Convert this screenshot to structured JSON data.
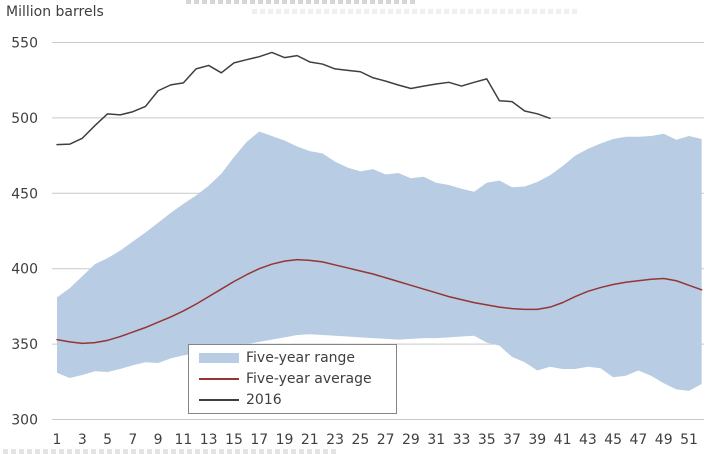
{
  "chart_data": {
    "type": "area",
    "title": "",
    "ylabel": "Million barrels",
    "xlabel": "",
    "x_unit": "week of year",
    "x_tick_labels": [
      "1",
      "3",
      "5",
      "7",
      "9",
      "11",
      "13",
      "15",
      "17",
      "19",
      "21",
      "23",
      "25",
      "27",
      "29",
      "31",
      "33",
      "35",
      "37",
      "39",
      "41",
      "43",
      "45",
      "47",
      "49",
      "51"
    ],
    "x_range": [
      1,
      52
    ],
    "y_ticks": [
      300,
      350,
      400,
      450,
      500,
      550
    ],
    "ylim": [
      300,
      550
    ],
    "grid": true,
    "legend_position": "inside-bottom-center",
    "colors": {
      "range_fill": "#b8cce4",
      "average_line": "#943634",
      "line_2016": "#3f3f3f",
      "gridline": "#c9c9c9",
      "text": "#3f3f3f"
    },
    "series": [
      {
        "name": "Five-year range",
        "type": "band",
        "color": "#b8cce4",
        "upper": [
          381,
          387,
          395,
          403,
          407,
          412,
          418,
          424,
          430.5,
          437,
          443,
          448.5,
          455,
          463,
          474,
          484,
          491,
          488,
          485,
          481,
          478,
          476.5,
          471,
          467,
          464.5,
          466,
          462.5,
          463.5,
          460,
          461,
          457,
          455.5,
          453,
          451,
          457,
          458.5,
          454,
          454.5,
          457.5,
          462,
          468,
          475,
          479.5,
          483,
          486,
          487.5,
          487.5,
          488,
          489.5,
          485.5,
          488,
          486
        ],
        "lower": [
          331,
          327.5,
          329.5,
          332,
          331.5,
          333.5,
          336,
          338,
          337.5,
          340.5,
          342.5,
          344,
          345.5,
          347,
          348.5,
          350,
          351.5,
          353,
          354.5,
          356,
          356.5,
          356,
          355.5,
          355,
          354.5,
          354,
          353.5,
          353,
          353.5,
          354,
          354,
          354.5,
          355,
          355.5,
          351,
          349,
          341.5,
          338,
          332.5,
          335,
          333.5,
          333.5,
          335,
          334,
          328,
          329,
          332.5,
          329,
          324,
          320,
          319,
          323.5
        ]
      },
      {
        "name": "Five-year average",
        "type": "line",
        "color": "#943634",
        "values": [
          353,
          351.5,
          350.5,
          351,
          352.5,
          355,
          358,
          361,
          364.5,
          368,
          372,
          376.5,
          381.5,
          386.5,
          391.5,
          396,
          400,
          403,
          405,
          406,
          405.5,
          404.5,
          402.5,
          400.5,
          398.5,
          396.5,
          394,
          391.5,
          389,
          386.5,
          384,
          381.5,
          379.5,
          377.5,
          376,
          374.5,
          373.5,
          373,
          373,
          374.5,
          377.5,
          381.5,
          385,
          387.5,
          389.5,
          391,
          392,
          393,
          393.5,
          392,
          389,
          386
        ]
      },
      {
        "name": "2016",
        "type": "line",
        "color": "#3f3f3f",
        "values": [
          482.3,
          482.6,
          486.5,
          494.9,
          502.7,
          502,
          504.1,
          507.6,
          518,
          521.9,
          523.2,
          532.5,
          534.8,
          529.9,
          536.5,
          538.6,
          540.6,
          543.4,
          540,
          541.3,
          537.1,
          535.7,
          532.5,
          531.5,
          530.6,
          526.6,
          524.4,
          521.8,
          519.5,
          521.1,
          522.5,
          523.6,
          521.1,
          523.6,
          525.9,
          511.4,
          510.8,
          504.6,
          502.7,
          499.7
        ]
      }
    ]
  },
  "legend": {
    "items": [
      {
        "label": "Five-year range"
      },
      {
        "label": "Five-year average"
      },
      {
        "label": "2016"
      }
    ]
  }
}
